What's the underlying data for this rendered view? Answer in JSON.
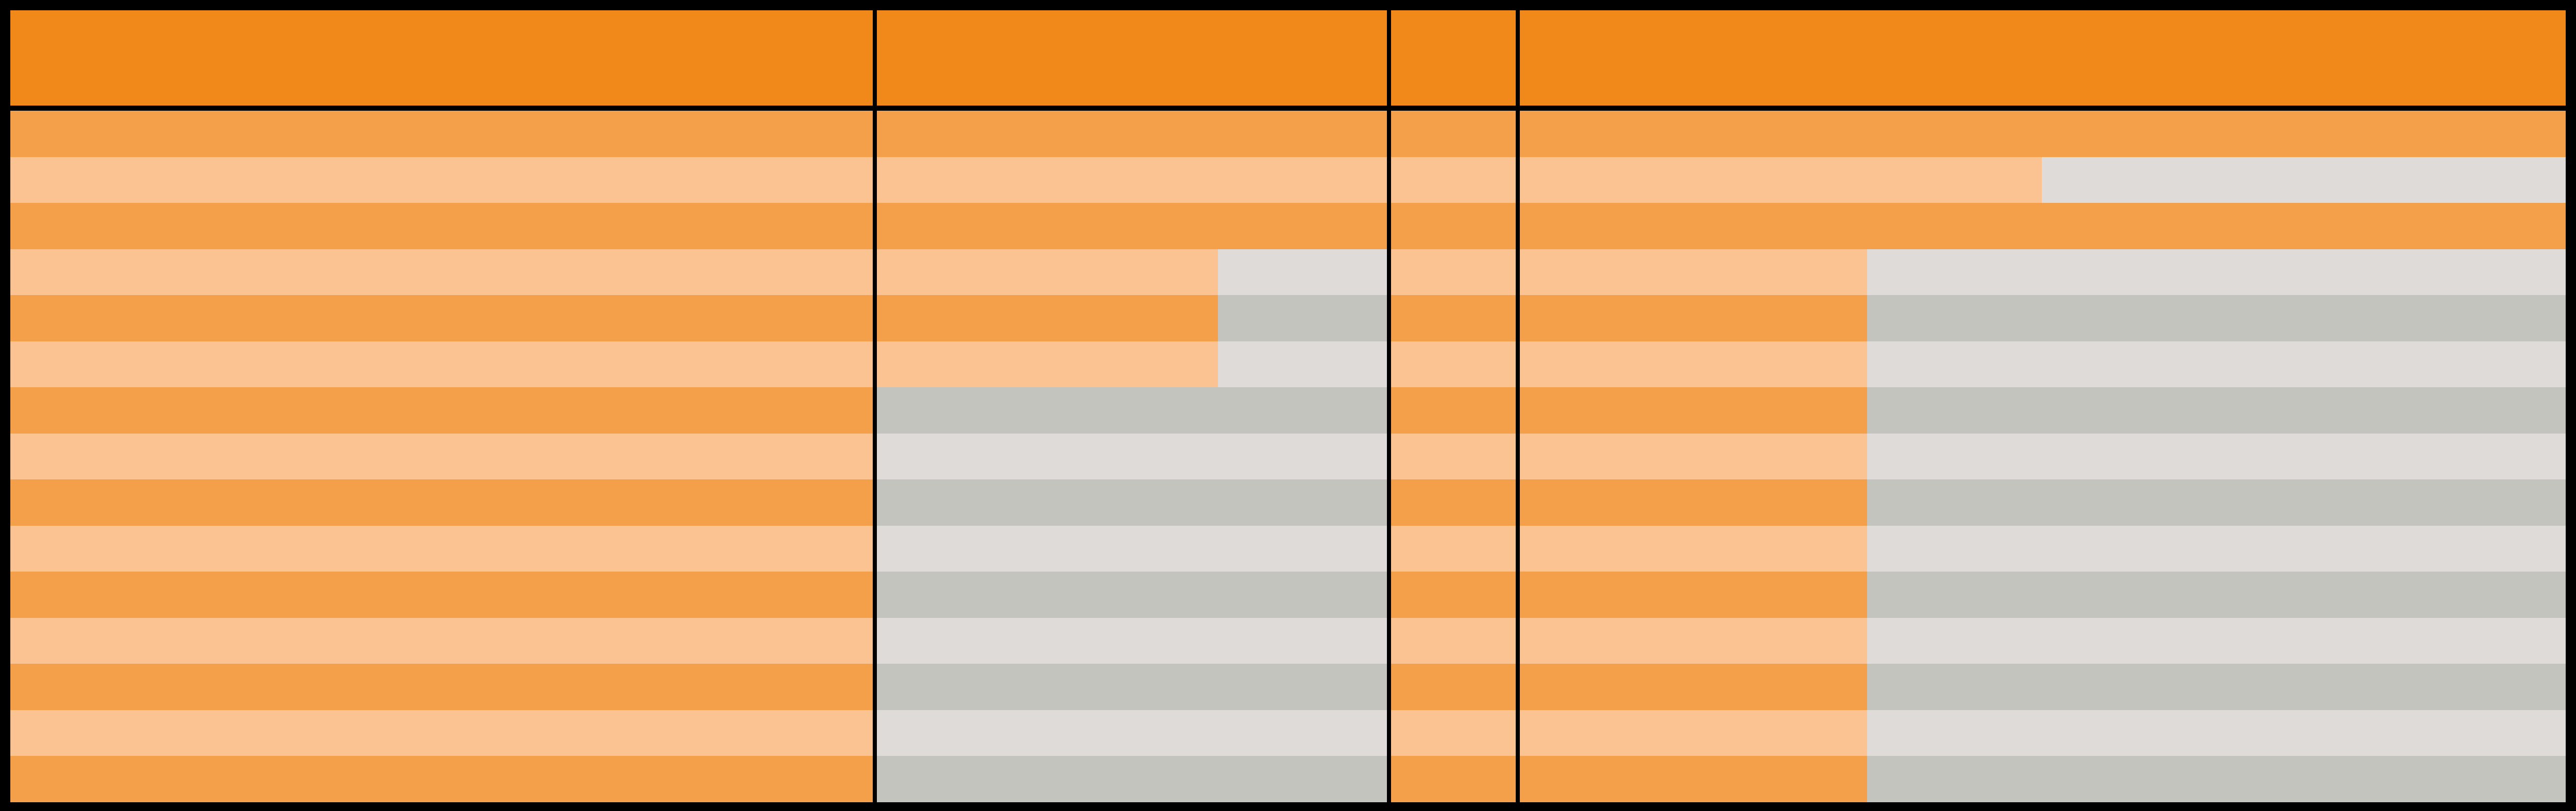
{
  "colors": {
    "header": "#F0881A",
    "shaded_dark": "#F4A04A",
    "shaded_light": "#FAC391",
    "empty_light": "#DEDBD9",
    "empty_dark": "#C3C4BD",
    "border": "#000000"
  },
  "table": {
    "header": [
      "",
      "",
      "",
      ""
    ],
    "rows": [
      [
        1,
        1,
        1,
        1
      ],
      [
        1,
        1,
        1,
        0.5
      ],
      [
        1,
        1,
        1,
        1
      ],
      [
        1,
        0.667,
        1,
        0.333
      ],
      [
        1,
        0.667,
        1,
        0.333
      ],
      [
        1,
        0.667,
        1,
        0.333
      ],
      [
        1,
        0,
        1,
        0.333
      ],
      [
        1,
        0,
        1,
        0.333
      ],
      [
        1,
        0,
        1,
        0.333
      ],
      [
        1,
        0,
        1,
        0.333
      ],
      [
        1,
        0,
        1,
        0.333
      ],
      [
        1,
        0,
        1,
        0.333
      ],
      [
        1,
        0,
        1,
        0.333
      ],
      [
        1,
        0,
        1,
        0.333
      ],
      [
        1,
        0,
        1,
        0.333
      ]
    ]
  }
}
